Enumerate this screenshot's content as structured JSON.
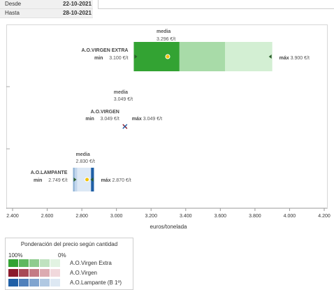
{
  "filters": {
    "desde": {
      "label": "Desde",
      "value": "22-10-2021"
    },
    "hasta": {
      "label": "Hasta",
      "value": "28-10-2021"
    }
  },
  "chart_data": {
    "type": "range-bar",
    "xlabel": "euros/tonelada",
    "xlim": [
      2400,
      4200
    ],
    "xticks": [
      "2.400",
      "2.600",
      "2.800",
      "3.000",
      "3.200",
      "3.400",
      "3.600",
      "3.800",
      "4.000",
      "4.200"
    ],
    "series": [
      {
        "name": "A.O.VIRGEN EXTRA",
        "min": 3100,
        "max": 3900,
        "media": 3296,
        "min_label": "min",
        "min_text": "3.100 €/t",
        "max_label": "máx",
        "max_text": "3.900 €/t",
        "media_label": "media",
        "media_text": "3.296 €/t",
        "shares": [
          0.33,
          0.33,
          0.34
        ],
        "colors": [
          "#33a333",
          "#a8dba8",
          "#d3efd3"
        ]
      },
      {
        "name": "A.O.VIRGEN",
        "min": 3049,
        "max": 3049,
        "media": 3049,
        "min_label": "min",
        "min_text": "3.049 €/t",
        "max_label": "máx",
        "max_text": "3.049 €/t",
        "media_label": "media",
        "media_text": "3.049 €/t",
        "shares": [],
        "colors": [
          "#8b1a2b"
        ]
      },
      {
        "name": "A.O.LAMPANTE",
        "min": 2749,
        "max": 2870,
        "media": 2830,
        "min_label": "min",
        "min_text": "2.749 €/t",
        "max_label": "máx",
        "max_text": "2.870 €/t",
        "media_label": "media",
        "media_text": "2.830 €/t",
        "shares": [
          0.08,
          0.12,
          0.66,
          0.14
        ],
        "colors": [
          "#8fb3d6",
          "#c2d6ec",
          "#dce8f5",
          "#1f5fa6"
        ]
      }
    ]
  },
  "legend": {
    "title": "Ponderación del precio según cantidad",
    "from": "100%",
    "to": "0%",
    "rows": [
      {
        "label": "A.O.Virgen Extra",
        "colors": [
          "#33a333",
          "#5fb85f",
          "#8fcc8f",
          "#bfe2bf",
          "#e2f3e2"
        ]
      },
      {
        "label": "A.O.Virgen",
        "colors": [
          "#8b1a2b",
          "#a84a57",
          "#c47b85",
          "#dcaab1",
          "#f1d8dc"
        ]
      },
      {
        "label": "A.O.Lampante (B 1º)",
        "colors": [
          "#1f5fa6",
          "#4f80bb",
          "#80a4cf",
          "#b0c8e2",
          "#dde8f3"
        ]
      }
    ]
  }
}
